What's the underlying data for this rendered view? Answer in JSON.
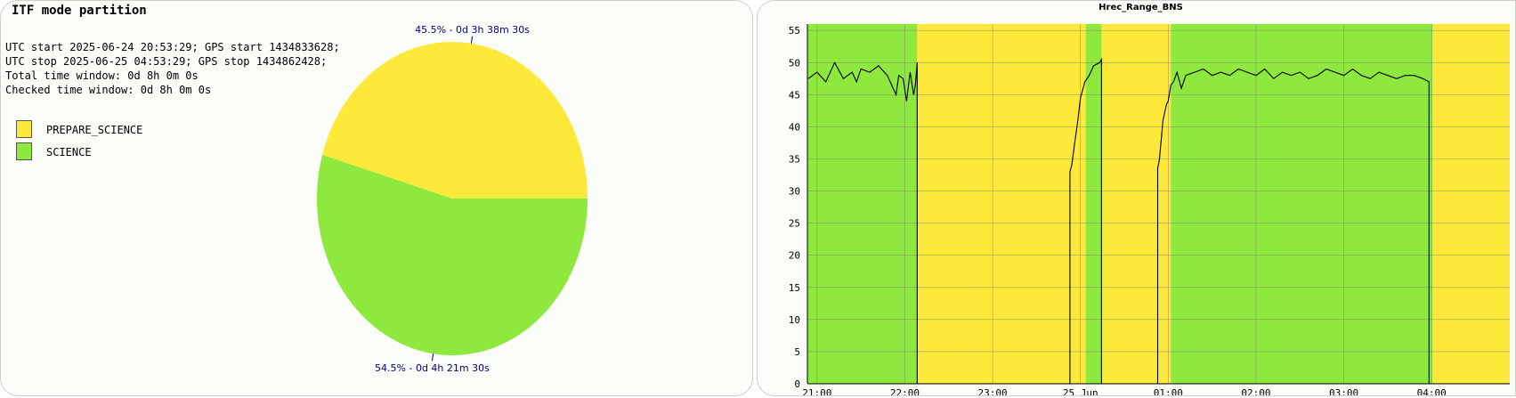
{
  "left": {
    "title": "ITF mode partition",
    "info": [
      "UTC start 2025-06-24 20:53:29; GPS start 1434833628;",
      "UTC stop 2025-06-25 04:53:29; GPS stop 1434862428;",
      "Total time window: 0d 8h 0m 0s",
      "Checked time window: 0d 8h 0m 0s"
    ],
    "legend": [
      {
        "label": "PREPARE_SCIENCE",
        "color": "#fde93a"
      },
      {
        "label": "SCIENCE",
        "color": "#8ee83d"
      }
    ]
  },
  "chart_data": [
    {
      "type": "pie",
      "title": "",
      "slices": [
        {
          "name": "PREPARE_SCIENCE",
          "value": 45.5,
          "label": "45.5% - 0d 3h 38m 30s",
          "color": "#fde93a"
        },
        {
          "name": "SCIENCE",
          "value": 54.5,
          "label": "54.5% - 0d 4h 21m 30s",
          "color": "#8ee83d"
        }
      ]
    },
    {
      "type": "line",
      "title": "Hrec_Range_BNS",
      "xlabel": "",
      "ylabel": "",
      "ylim": [
        0,
        56
      ],
      "yticks": [
        0,
        5,
        10,
        15,
        20,
        25,
        30,
        35,
        40,
        45,
        50,
        55
      ],
      "xlim_hours": [
        20.89,
        28.89
      ],
      "xticks": [
        {
          "t": 21,
          "label": "21:00"
        },
        {
          "t": 22,
          "label": "22:00"
        },
        {
          "t": 23,
          "label": "23:00"
        },
        {
          "t": 24,
          "label": "25 Jun"
        },
        {
          "t": 25,
          "label": "01:00"
        },
        {
          "t": 26,
          "label": "02:00"
        },
        {
          "t": 27,
          "label": "03:00"
        },
        {
          "t": 28,
          "label": "04:00"
        }
      ],
      "grid": true,
      "background_bands": [
        {
          "start": 20.89,
          "end": 22.14,
          "state": "SCIENCE",
          "color": "#8ee83d"
        },
        {
          "start": 22.14,
          "end": 24.06,
          "state": "PREPARE_SCIENCE",
          "color": "#fde93a"
        },
        {
          "start": 24.06,
          "end": 24.24,
          "state": "SCIENCE",
          "color": "#8ee83d"
        },
        {
          "start": 24.24,
          "end": 25.03,
          "state": "PREPARE_SCIENCE",
          "color": "#fde93a"
        },
        {
          "start": 25.03,
          "end": 28.01,
          "state": "SCIENCE",
          "color": "#8ee83d"
        },
        {
          "start": 28.01,
          "end": 28.89,
          "state": "PREPARE_SCIENCE",
          "color": "#fde93a"
        }
      ],
      "series": [
        {
          "color": "#000000",
          "x": [
            20.9,
            21.0,
            21.1,
            21.2,
            21.3,
            21.4,
            21.45,
            21.5,
            21.6,
            21.7,
            21.8,
            21.9,
            21.93,
            21.98,
            22.02,
            22.06,
            22.1,
            22.12,
            22.14,
            22.14,
            23.88,
            23.88,
            23.9,
            23.93,
            23.97,
            24.0,
            24.02,
            24.05,
            24.1,
            24.15,
            24.22,
            24.24,
            24.24,
            24.88,
            24.88,
            24.9,
            24.94,
            24.98,
            25.0,
            25.03,
            25.06,
            25.1,
            25.15,
            25.2,
            25.3,
            25.4,
            25.5,
            25.6,
            25.7,
            25.8,
            25.9,
            26.0,
            26.1,
            26.2,
            26.3,
            26.4,
            26.5,
            26.6,
            26.7,
            26.8,
            26.9,
            27.0,
            27.1,
            27.2,
            27.3,
            27.4,
            27.5,
            27.6,
            27.7,
            27.8,
            27.9,
            27.97,
            27.97
          ],
          "y": [
            47.5,
            48.5,
            47.0,
            50.0,
            47.5,
            48.5,
            47.0,
            49.0,
            48.5,
            49.5,
            48.0,
            45.0,
            48.0,
            47.5,
            44.0,
            48.5,
            45.0,
            46.5,
            50.0,
            0,
            0,
            33.0,
            34.0,
            37.0,
            41.0,
            44.5,
            45.5,
            47.0,
            48.0,
            49.5,
            50.0,
            50.5,
            0,
            0,
            33.5,
            35.0,
            41.0,
            43.5,
            44.0,
            46.5,
            47.0,
            48.5,
            46.0,
            48.0,
            48.5,
            49.0,
            48.0,
            48.5,
            48.0,
            49.0,
            48.5,
            48.0,
            49.0,
            47.5,
            48.5,
            48.0,
            48.5,
            47.5,
            48.0,
            49.0,
            48.5,
            48.0,
            49.0,
            48.0,
            47.5,
            48.5,
            48.0,
            47.5,
            48.0,
            48.0,
            47.5,
            47.0,
            0
          ]
        }
      ]
    }
  ]
}
